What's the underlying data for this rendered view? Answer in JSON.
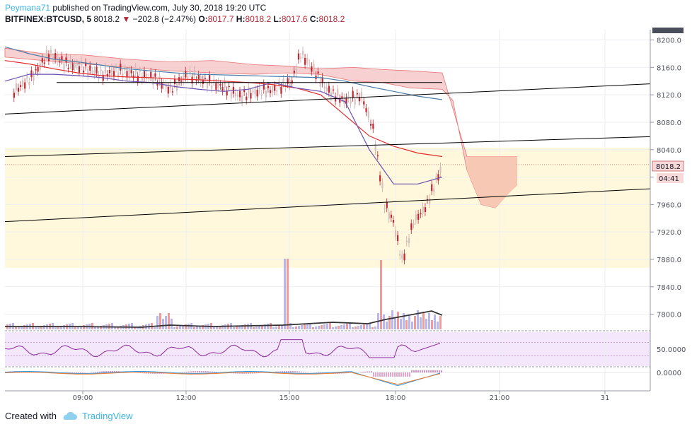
{
  "header": {
    "author": "Peymana71",
    "published_text": " published on TradingView.com, July 30, 2018 19:20 UTC",
    "symbol": "BITFINEX:BTCUSD, 5",
    "last": "8018.2",
    "change": "−202.8 (−2.47%)",
    "open_label": "O:",
    "open": "8017.7",
    "high_label": "H:",
    "high": "8018.2",
    "low_label": "L:",
    "low": "8017.6",
    "close_label": "C:",
    "close": "8018.2"
  },
  "footer": {
    "created_with": "Created with",
    "brand": "TradingView",
    "logo_icon": "tradingview-cloud-icon"
  },
  "colors": {
    "bull": "#d6c0c0",
    "bear": "#c2252f",
    "cloud_red": "#f5c4c6",
    "cloud_green": "#d6ecd4",
    "ema_red": "#e52a2a",
    "ema_purple": "#6a4fb0",
    "ema_blue": "#4a7ea8",
    "band": "#fff8dc",
    "rsi_bg": "#f4e6fb",
    "rsi_line": "#8b2c9b",
    "vol_up": "#a9a4f0",
    "vol_dn": "#f08080",
    "forecast": "#f7c9b4"
  },
  "chart_data": {
    "type": "candlestick",
    "symbol": "BITFINEX:BTCUSD",
    "interval": "5",
    "y_axis_ticks": [
      "8200.0",
      "8160.0",
      "8120.0",
      "8080.0",
      "8040.0",
      "8000.0",
      "7960.0",
      "7920.0",
      "7880.0",
      "7840.0",
      "7800.0"
    ],
    "ylim": [
      7780,
      8215
    ],
    "x_axis_ticks": [
      "09:00",
      "12:00",
      "15:00",
      "18:00",
      "21:00",
      "31"
    ],
    "last_price_label": "8018.2",
    "countdown_label": "04:41",
    "price_path": [
      {
        "t": "07:00",
        "p": 8125
      },
      {
        "t": "07:30",
        "p": 8145
      },
      {
        "t": "08:00",
        "p": 8180
      },
      {
        "t": "08:30",
        "p": 8165
      },
      {
        "t": "09:00",
        "p": 8160
      },
      {
        "t": "09:30",
        "p": 8150
      },
      {
        "t": "10:00",
        "p": 8155
      },
      {
        "t": "10:30",
        "p": 8150
      },
      {
        "t": "11:00",
        "p": 8145
      },
      {
        "t": "11:30",
        "p": 8128
      },
      {
        "t": "12:00",
        "p": 8150
      },
      {
        "t": "12:30",
        "p": 8140
      },
      {
        "t": "13:00",
        "p": 8132
      },
      {
        "t": "13:30",
        "p": 8118
      },
      {
        "t": "14:00",
        "p": 8125
      },
      {
        "t": "14:30",
        "p": 8128
      },
      {
        "t": "15:00",
        "p": 8140
      },
      {
        "t": "15:15",
        "p": 8180
      },
      {
        "t": "15:30",
        "p": 8165
      },
      {
        "t": "16:00",
        "p": 8128
      },
      {
        "t": "16:30",
        "p": 8112
      },
      {
        "t": "17:00",
        "p": 8118
      },
      {
        "t": "17:20",
        "p": 8070
      },
      {
        "t": "17:40",
        "p": 7960
      },
      {
        "t": "17:55",
        "p": 7935
      },
      {
        "t": "18:10",
        "p": 7878
      },
      {
        "t": "18:30",
        "p": 7935
      },
      {
        "t": "18:50",
        "p": 7955
      },
      {
        "t": "19:20",
        "p": 8018
      }
    ],
    "ema_fast": [
      8140,
      8150,
      8150,
      8148,
      8145,
      8140,
      8138,
      8132,
      8128,
      8125,
      8128,
      8138,
      8130,
      8125,
      8110,
      8040,
      7990,
      7990,
      8000
    ],
    "ema_slow": [
      8170,
      8165,
      8158,
      8152,
      8148,
      8146,
      8145,
      8143,
      8142,
      8140,
      8138,
      8135,
      8130,
      8120,
      8090,
      8060,
      8045,
      8035,
      8030
    ],
    "ema_long": [
      8190,
      8180,
      8172,
      8168,
      8163,
      8158,
      8155,
      8152,
      8150,
      8149,
      8148,
      8147,
      8146,
      8145,
      8140,
      8132,
      8125,
      8118,
      8113
    ],
    "trendlines": [
      {
        "from": [
          0,
          8092
        ],
        "to": [
          1,
          8136
        ]
      },
      {
        "from": [
          0,
          8030
        ],
        "to": [
          1,
          8059
        ]
      },
      {
        "from": [
          0,
          7935
        ],
        "to": [
          1,
          7983
        ]
      }
    ],
    "support_zone": [
      7872,
      8046
    ],
    "rsi_ticks": [
      "50.0000"
    ],
    "macd_ticks": [
      "0.0000"
    ]
  }
}
